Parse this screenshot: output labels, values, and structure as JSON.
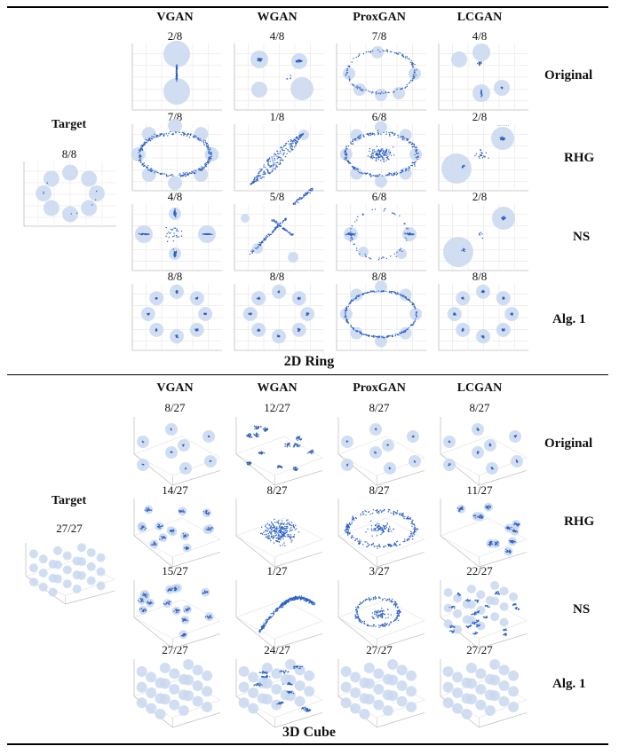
{
  "colors": {
    "circle": "#c9d8f0",
    "point": "#2a5fc4",
    "grid": "#e6e6e6",
    "axis": "#bbbbbb"
  },
  "sections": [
    {
      "id": "ring",
      "caption": "2D Ring",
      "columns": [
        "VGAN",
        "WGAN",
        "ProxGAN",
        "LCGAN"
      ],
      "target": {
        "label": "Target",
        "score": "8/8"
      },
      "rows": [
        {
          "label": "Original",
          "scores": [
            "2/8",
            "4/8",
            "7/8",
            "4/8"
          ]
        },
        {
          "label": "RHG",
          "scores": [
            "7/8",
            "1/8",
            "6/8",
            "2/8"
          ]
        },
        {
          "label": "NS",
          "scores": [
            "4/8",
            "5/8",
            "6/8",
            "2/8"
          ]
        },
        {
          "label": "Alg. 1",
          "scores": [
            "8/8",
            "8/8",
            "8/8",
            "8/8"
          ]
        }
      ]
    },
    {
      "id": "cube",
      "caption": "3D Cube",
      "columns": [
        "VGAN",
        "WGAN",
        "ProxGAN",
        "LCGAN"
      ],
      "target": {
        "label": "Target",
        "score": "27/27"
      },
      "rows": [
        {
          "label": "Original",
          "scores": [
            "8/27",
            "12/27",
            "8/27",
            "8/27"
          ]
        },
        {
          "label": "RHG",
          "scores": [
            "14/27",
            "8/27",
            "8/27",
            "11/27"
          ]
        },
        {
          "label": "NS",
          "scores": [
            "15/27",
            "1/27",
            "3/27",
            "22/27"
          ]
        },
        {
          "label": "Alg. 1",
          "scores": [
            "27/27",
            "24/27",
            "27/27",
            "27/27"
          ]
        }
      ]
    }
  ]
}
